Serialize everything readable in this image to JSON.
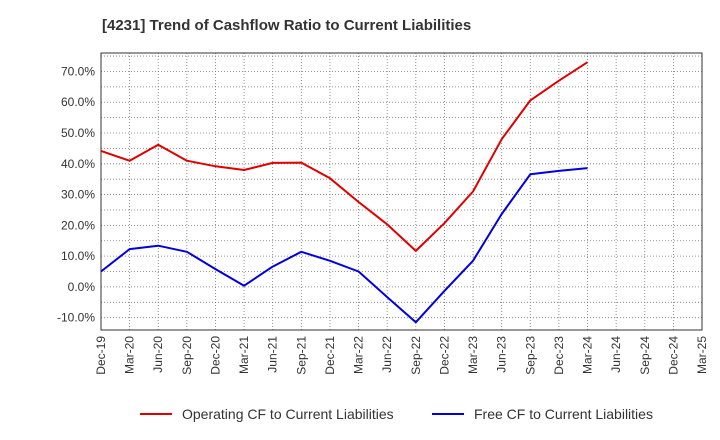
{
  "chart_data": {
    "type": "line",
    "title": "[4231]  Trend of Cashflow Ratio to Current Liabilities",
    "xlabel": "",
    "ylabel": "",
    "categories": [
      "Dec-19",
      "Mar-20",
      "Jun-20",
      "Sep-20",
      "Dec-20",
      "Mar-21",
      "Jun-21",
      "Sep-21",
      "Dec-21",
      "Mar-22",
      "Jun-22",
      "Sep-22",
      "Dec-22",
      "Mar-23",
      "Jun-23",
      "Sep-23",
      "Dec-23",
      "Mar-24",
      "Jun-24",
      "Sep-24",
      "Dec-24",
      "Mar-25"
    ],
    "y_ticks": [
      "-10.0%",
      "0.0%",
      "10.0%",
      "20.0%",
      "30.0%",
      "40.0%",
      "50.0%",
      "60.0%",
      "70.0%"
    ],
    "ylim": [
      -14,
      76
    ],
    "grid": true,
    "legend_position": "bottom",
    "series": [
      {
        "name": "Operating CF to Current Liabilities",
        "color": "#e00000",
        "values": [
          44.2,
          41.0,
          46.2,
          41.0,
          39.2,
          38.0,
          40.3,
          40.4,
          35.3,
          27.6,
          20.3,
          11.7,
          20.7,
          31.0,
          48.0,
          60.6,
          67.0,
          73.0,
          null,
          null,
          null,
          null
        ]
      },
      {
        "name": "Free CF to Current Liabilities",
        "color": "#0000dd",
        "values": [
          5.0,
          12.3,
          13.4,
          11.4,
          5.8,
          0.4,
          6.6,
          11.4,
          8.5,
          5.0,
          -3.3,
          -11.5,
          -1.3,
          8.5,
          23.7,
          36.6,
          37.7,
          38.6,
          null,
          null,
          null,
          null
        ]
      }
    ]
  }
}
